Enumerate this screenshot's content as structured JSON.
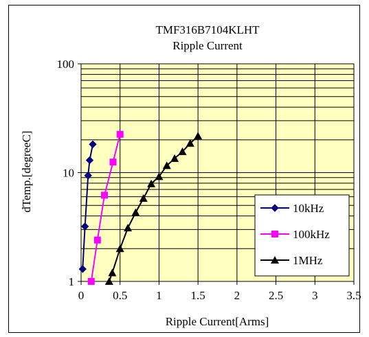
{
  "chart_data": {
    "type": "line",
    "title": "TMF316B7104KLHT",
    "subtitle": "Ripple Current",
    "xlabel": "Ripple Current[Arms]",
    "ylabel": "dTemp.[degreeC]",
    "xlim": [
      0,
      3.5
    ],
    "ylim": [
      1,
      100
    ],
    "yscale": "log",
    "xticks": [
      "0",
      "0.5",
      "1",
      "1.5",
      "2",
      "2.5",
      "3",
      "3.5"
    ],
    "yticks": [
      "1",
      "10",
      "100"
    ],
    "plot_background": "#ffffc0",
    "grid": true,
    "legend_position": "right",
    "series": [
      {
        "name": "10kHz",
        "color": "#000080",
        "marker": "diamond",
        "x": [
          0.02,
          0.05,
          0.09,
          0.11,
          0.15
        ],
        "y": [
          1.3,
          3.2,
          9.4,
          13,
          18.2
        ]
      },
      {
        "name": "100kHz",
        "color": "#ff00ff",
        "marker": "square",
        "x": [
          0.13,
          0.21,
          0.3,
          0.41,
          0.5
        ],
        "y": [
          1,
          2.4,
          6.2,
          12.5,
          22.5
        ]
      },
      {
        "name": "1MHz",
        "color": "#000000",
        "marker": "triangle",
        "x": [
          0.36,
          0.4,
          0.5,
          0.6,
          0.7,
          0.8,
          0.9,
          1.0,
          1.1,
          1.2,
          1.3,
          1.4,
          1.5
        ],
        "y": [
          1,
          1.2,
          2.0,
          3.1,
          4.3,
          5.8,
          7.9,
          9.2,
          11.6,
          13.5,
          15.6,
          18.6,
          21.7
        ]
      }
    ]
  }
}
